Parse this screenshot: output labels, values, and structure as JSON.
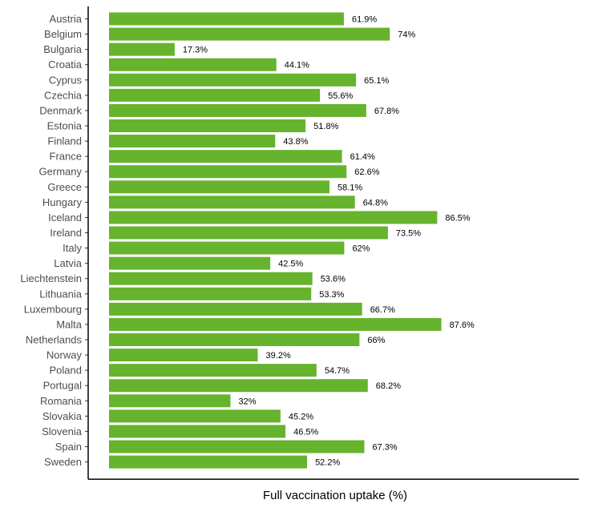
{
  "chart_data": {
    "type": "bar",
    "orientation": "horizontal",
    "title": "",
    "xlabel": "Full vaccination uptake (%)",
    "ylabel": "",
    "xlim": [
      0,
      100
    ],
    "grid": false,
    "bar_color": "#66b32e",
    "value_suffix": "%",
    "categories": [
      "Austria",
      "Belgium",
      "Bulgaria",
      "Croatia",
      "Cyprus",
      "Czechia",
      "Denmark",
      "Estonia",
      "Finland",
      "France",
      "Germany",
      "Greece",
      "Hungary",
      "Iceland",
      "Ireland",
      "Italy",
      "Latvia",
      "Liechtenstein",
      "Lithuania",
      "Luxembourg",
      "Malta",
      "Netherlands",
      "Norway",
      "Poland",
      "Portugal",
      "Romania",
      "Slovakia",
      "Slovenia",
      "Spain",
      "Sweden"
    ],
    "values": [
      61.9,
      74,
      17.3,
      44.1,
      65.1,
      55.6,
      67.8,
      51.8,
      43.8,
      61.4,
      62.6,
      58.1,
      64.8,
      86.5,
      73.5,
      62,
      42.5,
      53.6,
      53.3,
      66.7,
      87.6,
      66,
      39.2,
      54.7,
      68.2,
      32,
      45.2,
      46.5,
      67.3,
      52.2
    ]
  }
}
